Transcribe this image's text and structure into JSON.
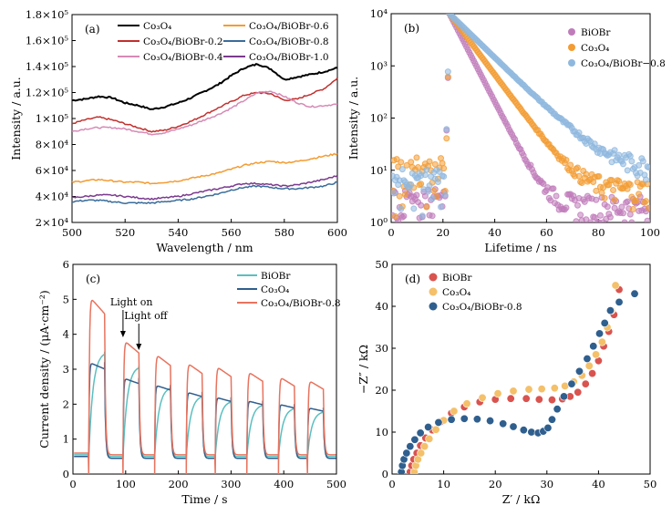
{
  "chart_data": [
    {
      "panel": "(a)",
      "type": "line",
      "xlabel": "Wavelength / nm",
      "ylabel": "Intensity / a.u.",
      "xlim": [
        500,
        600
      ],
      "ylim": [
        20000,
        180000
      ],
      "xticks": [
        500,
        520,
        540,
        560,
        580,
        600
      ],
      "xtick_labels": [
        "500",
        "520",
        "540",
        "560",
        "580",
        "600"
      ],
      "yticks": [
        20000,
        40000,
        60000,
        80000,
        100000,
        120000,
        140000,
        160000,
        180000
      ],
      "ytick_labels": [
        "2×10⁴",
        "4×10⁴",
        "6×10⁴",
        "8×10⁴",
        "1×10⁵",
        "1.2×10⁵",
        "1.4×10⁵",
        "1.6×10⁵",
        "1.8×10⁵"
      ],
      "legend_position": "top",
      "series": [
        {
          "name": "Co₃O₄",
          "color": "#000000",
          "x": [
            500,
            505,
            510,
            515,
            520,
            525,
            530,
            535,
            540,
            545,
            550,
            555,
            560,
            565,
            570,
            575,
            580,
            585,
            590,
            595,
            600
          ],
          "values": [
            114000,
            115000,
            117000,
            116000,
            112000,
            110000,
            107000,
            109000,
            112000,
            116000,
            121000,
            126000,
            133000,
            139000,
            142000,
            138000,
            130000,
            132000,
            134000,
            136000,
            139000
          ]
        },
        {
          "name": "Co₃O₄/BiOBr-0.2",
          "color": "#c0302e",
          "x": [
            500,
            505,
            510,
            515,
            520,
            525,
            530,
            535,
            540,
            545,
            550,
            555,
            560,
            565,
            570,
            575,
            580,
            585,
            590,
            595,
            600
          ],
          "values": [
            96000,
            99000,
            101000,
            99000,
            96000,
            93000,
            90000,
            91000,
            94000,
            98000,
            103000,
            108000,
            113000,
            118000,
            120000,
            119000,
            114000,
            115000,
            119000,
            123000,
            131000
          ]
        },
        {
          "name": "Co₃O₄/BiOBr-0.4",
          "color": "#d68ab5",
          "x": [
            500,
            505,
            510,
            515,
            520,
            525,
            530,
            535,
            540,
            545,
            550,
            555,
            560,
            565,
            570,
            575,
            580,
            585,
            590,
            595,
            600
          ],
          "values": [
            90000,
            92000,
            93000,
            93000,
            92000,
            90000,
            88000,
            89000,
            92000,
            95000,
            99000,
            103000,
            108000,
            114000,
            120000,
            121000,
            117000,
            112000,
            109000,
            110000,
            111000
          ]
        },
        {
          "name": "Co₃O₄/BiOBr-0.6",
          "color": "#f39c33",
          "x": [
            500,
            505,
            510,
            515,
            520,
            525,
            530,
            535,
            540,
            545,
            550,
            555,
            560,
            565,
            570,
            575,
            580,
            585,
            590,
            595,
            600
          ],
          "values": [
            51000,
            52000,
            53000,
            52000,
            51000,
            51000,
            50000,
            51000,
            52000,
            54000,
            56000,
            58000,
            61000,
            64000,
            66000,
            67000,
            66000,
            67000,
            69000,
            71000,
            73000
          ]
        },
        {
          "name": "Co₃O₄/BiOBr-0.8",
          "color": "#3a6c9a",
          "x": [
            500,
            505,
            510,
            515,
            520,
            525,
            530,
            535,
            540,
            545,
            550,
            555,
            560,
            565,
            570,
            575,
            580,
            585,
            590,
            595,
            600
          ],
          "values": [
            36000,
            37000,
            37000,
            36000,
            35000,
            35000,
            35000,
            36000,
            37000,
            38000,
            40000,
            42000,
            45000,
            47000,
            48000,
            47000,
            46000,
            46000,
            47000,
            48000,
            51000
          ]
        },
        {
          "name": "Co₃O₄/BiOBr-1.0",
          "color": "#7b3a8e",
          "x": [
            500,
            505,
            510,
            515,
            520,
            525,
            530,
            535,
            540,
            545,
            550,
            555,
            560,
            565,
            570,
            575,
            580,
            585,
            590,
            595,
            600
          ],
          "values": [
            39000,
            40000,
            41000,
            41000,
            40000,
            39000,
            38000,
            39000,
            40000,
            42000,
            44000,
            46000,
            48000,
            50000,
            50000,
            49000,
            48000,
            49000,
            51000,
            53000,
            56000
          ]
        }
      ]
    },
    {
      "panel": "(b)",
      "type": "scatter",
      "xlabel": "Lifetime / ns",
      "ylabel": "Intensity / a.u.",
      "xlim": [
        0,
        100
      ],
      "ylim": [
        1,
        10000
      ],
      "yscale": "log",
      "xticks": [
        0,
        20,
        40,
        60,
        80,
        100
      ],
      "xtick_labels": [
        "0",
        "20",
        "40",
        "60",
        "80",
        "100"
      ],
      "yticks": [
        1,
        10,
        100,
        1000,
        10000
      ],
      "ytick_labels": [
        "10⁰",
        "10¹",
        "10²",
        "10³",
        "10⁴"
      ],
      "legend_position": "top-right",
      "series": [
        {
          "name": "BiOBr",
          "color": "#c07cba",
          "peak": 10000,
          "tail": 2,
          "decay_ns": 4.5,
          "baseline_before": 2
        },
        {
          "name": "Co₃O₄",
          "color": "#f39c33",
          "peak": 10000,
          "tail": 4,
          "decay_ns": 6.5,
          "baseline_before": 8
        },
        {
          "name": "Co₃O₄/BiOBr−0.8",
          "color": "#8fb8de",
          "peak": 10000,
          "tail": 10,
          "decay_ns": 9,
          "baseline_before": 5
        }
      ]
    },
    {
      "panel": "(c)",
      "type": "line",
      "xlabel": "Time / s",
      "ylabel": "Current density / (μA·cm⁻²)",
      "xlim": [
        0,
        500
      ],
      "ylim": [
        0,
        6
      ],
      "xticks": [
        0,
        100,
        200,
        300,
        400,
        500
      ],
      "xtick_labels": [
        "0",
        "100",
        "200",
        "300",
        "400",
        "500"
      ],
      "yticks": [
        0,
        1,
        2,
        3,
        4,
        5,
        6
      ],
      "ytick_labels": [
        "0",
        "1",
        "2",
        "3",
        "4",
        "5",
        "6"
      ],
      "legend_position": "top-right",
      "annotations": [
        "Light on",
        "Light off"
      ],
      "light_on_times": [
        30,
        95,
        155,
        215,
        270,
        330,
        390,
        445
      ],
      "light_off_times": [
        60,
        125,
        185,
        245,
        300,
        360,
        420,
        475
      ],
      "series": [
        {
          "name": "BiOBr",
          "color": "#5bbfc0",
          "on_values": [
            3.5,
            3.1,
            2.5,
            2.25,
            2.1,
            2.0,
            1.9,
            1.8
          ],
          "dark": 0.5
        },
        {
          "name": "Co₃O₄",
          "color": "#2f5e8c",
          "on_values": [
            3.2,
            2.75,
            2.55,
            2.35,
            2.2,
            2.1,
            2.0,
            1.9
          ],
          "dark": 0.45
        },
        {
          "name": "Co₃O₄/BiOBr-0.8",
          "color": "#e8735e",
          "on_values": [
            5.1,
            3.85,
            3.45,
            3.2,
            3.1,
            2.95,
            2.8,
            2.7
          ],
          "dark": 0.55
        }
      ]
    },
    {
      "panel": "(d)",
      "type": "scatter",
      "xlabel": "Z′ / kΩ",
      "ylabel": "−Z″ / kΩ",
      "xlim": [
        0,
        50
      ],
      "ylim": [
        0,
        50
      ],
      "xticks": [
        0,
        10,
        20,
        30,
        40,
        50
      ],
      "xtick_labels": [
        "0",
        "10",
        "20",
        "30",
        "40",
        "50"
      ],
      "yticks": [
        0,
        10,
        20,
        30,
        40,
        50
      ],
      "ytick_labels": [
        "0",
        "10",
        "20",
        "30",
        "40",
        "50"
      ],
      "legend_position": "top-left",
      "series": [
        {
          "name": "BiOBr",
          "color": "#d9534f",
          "x": [
            3.5,
            3.8,
            4.2,
            4.8,
            5.5,
            6.5,
            7.8,
            9.5,
            11.5,
            14,
            17,
            20,
            23,
            26,
            28.5,
            31,
            33,
            34.5,
            36,
            37.5,
            38.8,
            40,
            41,
            42,
            43,
            44
          ],
          "values": [
            0.5,
            2,
            3.5,
            5,
            6.8,
            8.6,
            10.5,
            12.5,
            14.5,
            16,
            17.2,
            17.8,
            18,
            18,
            17.8,
            17.7,
            17.9,
            18.5,
            19.5,
            21.5,
            24,
            27,
            30.5,
            34,
            38,
            44
          ]
        },
        {
          "name": "Co₃O₄",
          "color": "#f4c06a",
          "x": [
            4.3,
            4.6,
            5.0,
            5.6,
            6.3,
            7.2,
            8.5,
            10,
            12,
            14.5,
            17.5,
            20.5,
            23.5,
            26.5,
            29,
            31.5,
            33.5,
            35.2,
            36.8,
            38.2,
            39.5,
            40.7,
            41.7,
            42.5,
            43.3
          ],
          "values": [
            0.5,
            2,
            3.5,
            5,
            6.6,
            8.4,
            10.6,
            12.8,
            15,
            16.8,
            18.2,
            19.2,
            19.8,
            20.2,
            20.3,
            20.5,
            21,
            22,
            23.5,
            25.8,
            28.5,
            31.5,
            35,
            39,
            45
          ]
        },
        {
          "name": "Co₃O₄/BiOBr-0.8",
          "color": "#2f5f8e",
          "x": [
            1.8,
            2.0,
            2.3,
            2.8,
            3.5,
            4.4,
            5.5,
            7,
            9,
            11.5,
            14,
            16.5,
            19,
            21.5,
            23.5,
            25.5,
            27,
            28.3,
            29.3,
            30.2,
            31,
            32,
            33.3,
            34.8,
            36.3,
            37.8,
            39,
            40.2,
            41.2,
            42.3,
            44,
            47
          ],
          "values": [
            0.5,
            2,
            3.5,
            5,
            6.6,
            8.2,
            9.8,
            11.2,
            12.3,
            13,
            13.2,
            13.1,
            12.7,
            12,
            11.3,
            10.5,
            10,
            9.8,
            10.2,
            11,
            13,
            15.5,
            18.5,
            21.5,
            24.5,
            27.5,
            30.5,
            33.5,
            36,
            39,
            41,
            43
          ]
        }
      ]
    }
  ]
}
